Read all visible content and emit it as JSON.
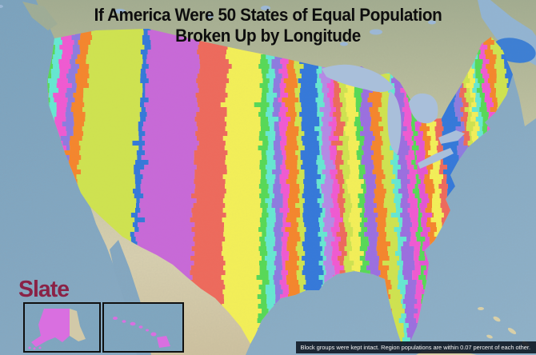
{
  "title": {
    "line1": "If America Were 50 States of Equal Population",
    "line2": "Broken Up by Longitude"
  },
  "logo": {
    "text": "Slate",
    "color": "#8a2246"
  },
  "caption": "Block groups were kept intact. Region populations are within 0.07 percent of each other.",
  "map": {
    "type": "striped-choropleth-map",
    "subject": "contiguous United States divided into 50 equal-population longitude bands",
    "total_regions": 50,
    "ocean_color": "#84a8c2",
    "canada_land_color": "#a3ad90",
    "mexico_land_color": "#d8d0b0",
    "great_lakes_color": "#a9bfda",
    "st_lawrence_color": "#8fb3cf",
    "gulf_st_lawrence_blue": "#3d7fd4",
    "palette": {
      "pink": "#f05ad2",
      "orchid": "#c869d8",
      "yellow": "#f3ef58",
      "red": "#ee6a5c",
      "green": "#57d957",
      "cyan": "#66e8d2",
      "purple": "#8d7ce0",
      "orange": "#f5862d",
      "chartreuse": "#cfe350",
      "blue": "#3579da",
      "lavender": "#b48ae6",
      "magenta": "#e455d4",
      "violet": "#9b6fe0"
    },
    "stripe_colors": [
      "pink",
      "orchid",
      "yellow",
      "red",
      "green",
      "cyan",
      "pink",
      "purple",
      "orange",
      "chartreuse",
      "blue",
      "orchid",
      "red",
      "yellow",
      "green",
      "cyan",
      "purple",
      "pink",
      "orange",
      "chartreuse",
      "blue",
      "cyan",
      "lavender",
      "pink",
      "red",
      "chartreuse",
      "yellow",
      "green",
      "violet",
      "orange",
      "chartreuse",
      "cyan",
      "violet",
      "pink",
      "green",
      "magenta",
      "orange",
      "yellow",
      "red",
      "blue",
      "purple",
      "red",
      "chartreuse",
      "yellow",
      "cyan",
      "green",
      "pink",
      "orange",
      "chartreuse",
      "blue"
    ],
    "stripe_boundaries_x": [
      10,
      18,
      26,
      34,
      41,
      48,
      58,
      72,
      82,
      96,
      168,
      176,
      243,
      281,
      325,
      334,
      342,
      351,
      359,
      372,
      379,
      399,
      405,
      415,
      422,
      429,
      437,
      449,
      456,
      469,
      481,
      493,
      500,
      511,
      519,
      525,
      533,
      541,
      551,
      559,
      579,
      587,
      593,
      599,
      605,
      611,
      618,
      626,
      635,
      648,
      675
    ]
  },
  "insets": {
    "alaska": {
      "region_fill": "#d96fe0",
      "uncolored_fill": "#d8d0b0",
      "water": "#7fa6c0"
    },
    "hawaii": {
      "region_fill": "#d96fe0",
      "water": "#7fa6c0"
    }
  }
}
